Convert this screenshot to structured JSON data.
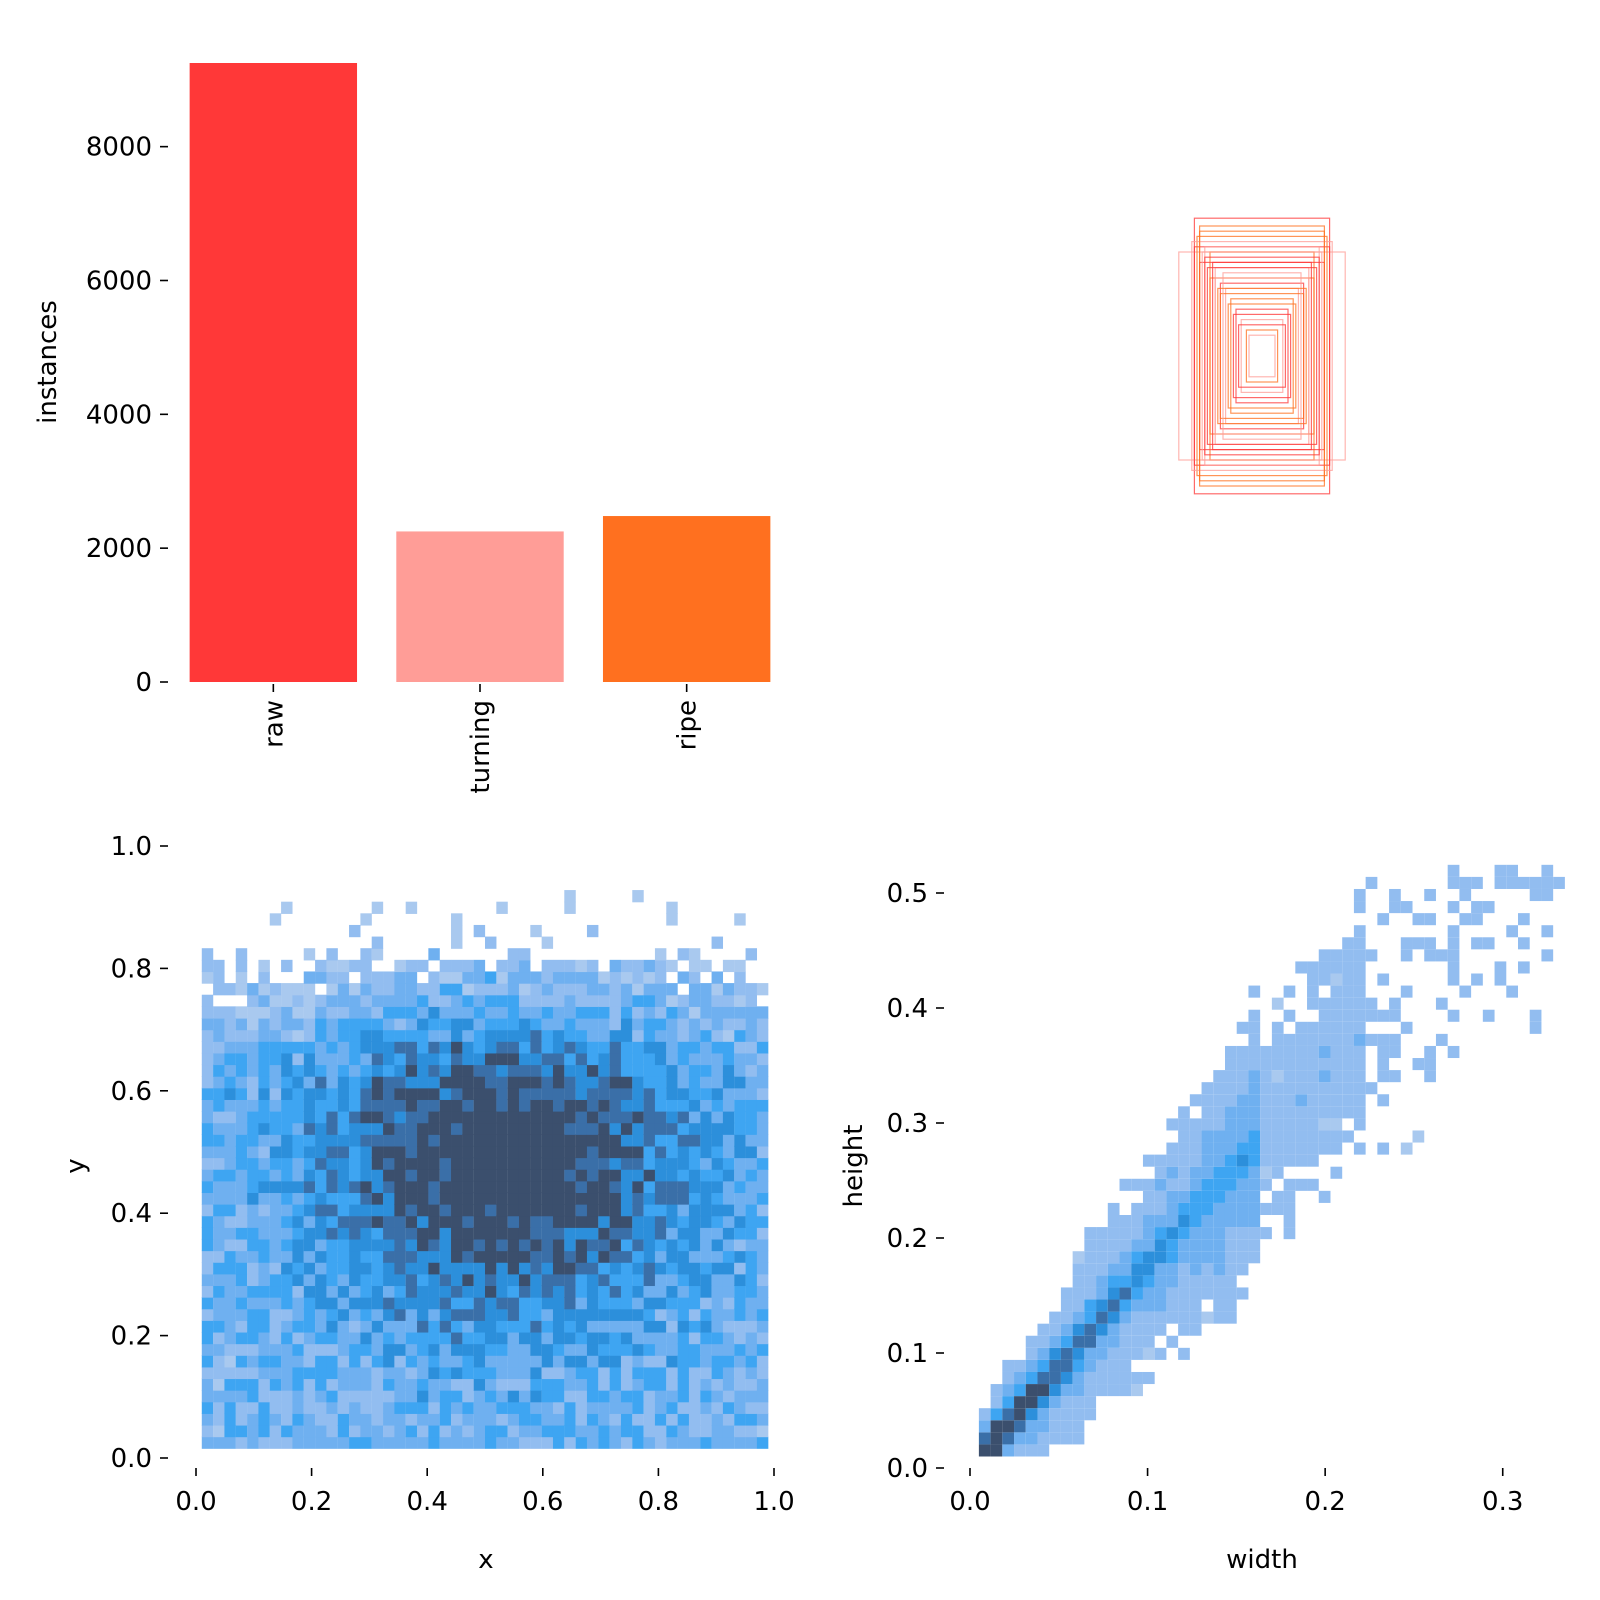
{
  "chart_data": [
    {
      "type": "bar",
      "panel": "class-counts",
      "categories": [
        "raw",
        "turning",
        "ripe"
      ],
      "values": [
        9250,
        2250,
        2480
      ],
      "colors": [
        "#ff3838",
        "#ff9d97",
        "#ff701f"
      ],
      "ylabel": "instances",
      "ylim": [
        0,
        9250
      ],
      "yticks": [
        "0",
        "2000",
        "4000",
        "6000",
        "8000"
      ],
      "grid": false
    },
    {
      "type": "box-overlay",
      "panel": "box-shapes",
      "colors": [
        "#ff3838",
        "#ff9d97",
        "#ff701f"
      ],
      "boxes": [
        {
          "w": 0.26,
          "h": 0.53
        },
        {
          "w": 0.32,
          "h": 0.4
        },
        {
          "w": 0.24,
          "h": 0.48
        },
        {
          "w": 0.26,
          "h": 0.42
        },
        {
          "w": 0.22,
          "h": 0.42
        },
        {
          "w": 0.2,
          "h": 0.4
        },
        {
          "w": 0.24,
          "h": 0.36
        },
        {
          "w": 0.18,
          "h": 0.34
        },
        {
          "w": 0.2,
          "h": 0.3
        },
        {
          "w": 0.16,
          "h": 0.28
        },
        {
          "w": 0.14,
          "h": 0.26
        },
        {
          "w": 0.12,
          "h": 0.22
        },
        {
          "w": 0.1,
          "h": 0.18
        },
        {
          "w": 0.08,
          "h": 0.14
        },
        {
          "w": 0.06,
          "h": 0.1
        },
        {
          "w": 0.22,
          "h": 0.38
        },
        {
          "w": 0.18,
          "h": 0.3
        },
        {
          "w": 0.16,
          "h": 0.24
        },
        {
          "w": 0.21,
          "h": 0.34
        },
        {
          "w": 0.23,
          "h": 0.4
        },
        {
          "w": 0.25,
          "h": 0.46
        },
        {
          "w": 0.19,
          "h": 0.36
        },
        {
          "w": 0.15,
          "h": 0.32
        },
        {
          "w": 0.13,
          "h": 0.2
        },
        {
          "w": 0.11,
          "h": 0.16
        },
        {
          "w": 0.27,
          "h": 0.44
        },
        {
          "w": 0.17,
          "h": 0.26
        },
        {
          "w": 0.09,
          "h": 0.12
        },
        {
          "w": 0.05,
          "h": 0.08
        },
        {
          "w": 0.24,
          "h": 0.5
        }
      ]
    },
    {
      "type": "heatmap",
      "panel": "xy-histogram",
      "xlabel": "x",
      "ylabel": "y",
      "xlim": [
        0.0,
        1.0
      ],
      "ylim": [
        0.0,
        1.0
      ],
      "xticks": [
        "0.0",
        "0.2",
        "0.4",
        "0.6",
        "0.8",
        "1.0"
      ],
      "yticks": [
        "0.0",
        "0.2",
        "0.4",
        "0.6",
        "0.8",
        "1.0"
      ],
      "density_center": [
        0.52,
        0.47
      ],
      "palette": [
        "#a9c9ef",
        "#92bdf0",
        "#6fb0f0",
        "#3ea5f2",
        "#2c8fdb",
        "#3a6fa8",
        "#3b4f6d"
      ]
    },
    {
      "type": "heatmap",
      "panel": "width-height-histogram",
      "xlabel": "width",
      "ylabel": "height",
      "xlim": [
        0.0,
        0.33
      ],
      "ylim": [
        0.0,
        0.52
      ],
      "xticks": [
        "0.0",
        "0.1",
        "0.2",
        "0.3"
      ],
      "yticks": [
        "0.0",
        "0.1",
        "0.2",
        "0.3",
        "0.4",
        "0.5"
      ],
      "trend": "height ≈ 1.7 × width",
      "palette": [
        "#a9c9ef",
        "#92bdf0",
        "#6fb0f0",
        "#3ea5f2",
        "#2c8fdb",
        "#3a6fa8",
        "#3b4f6d"
      ]
    }
  ]
}
